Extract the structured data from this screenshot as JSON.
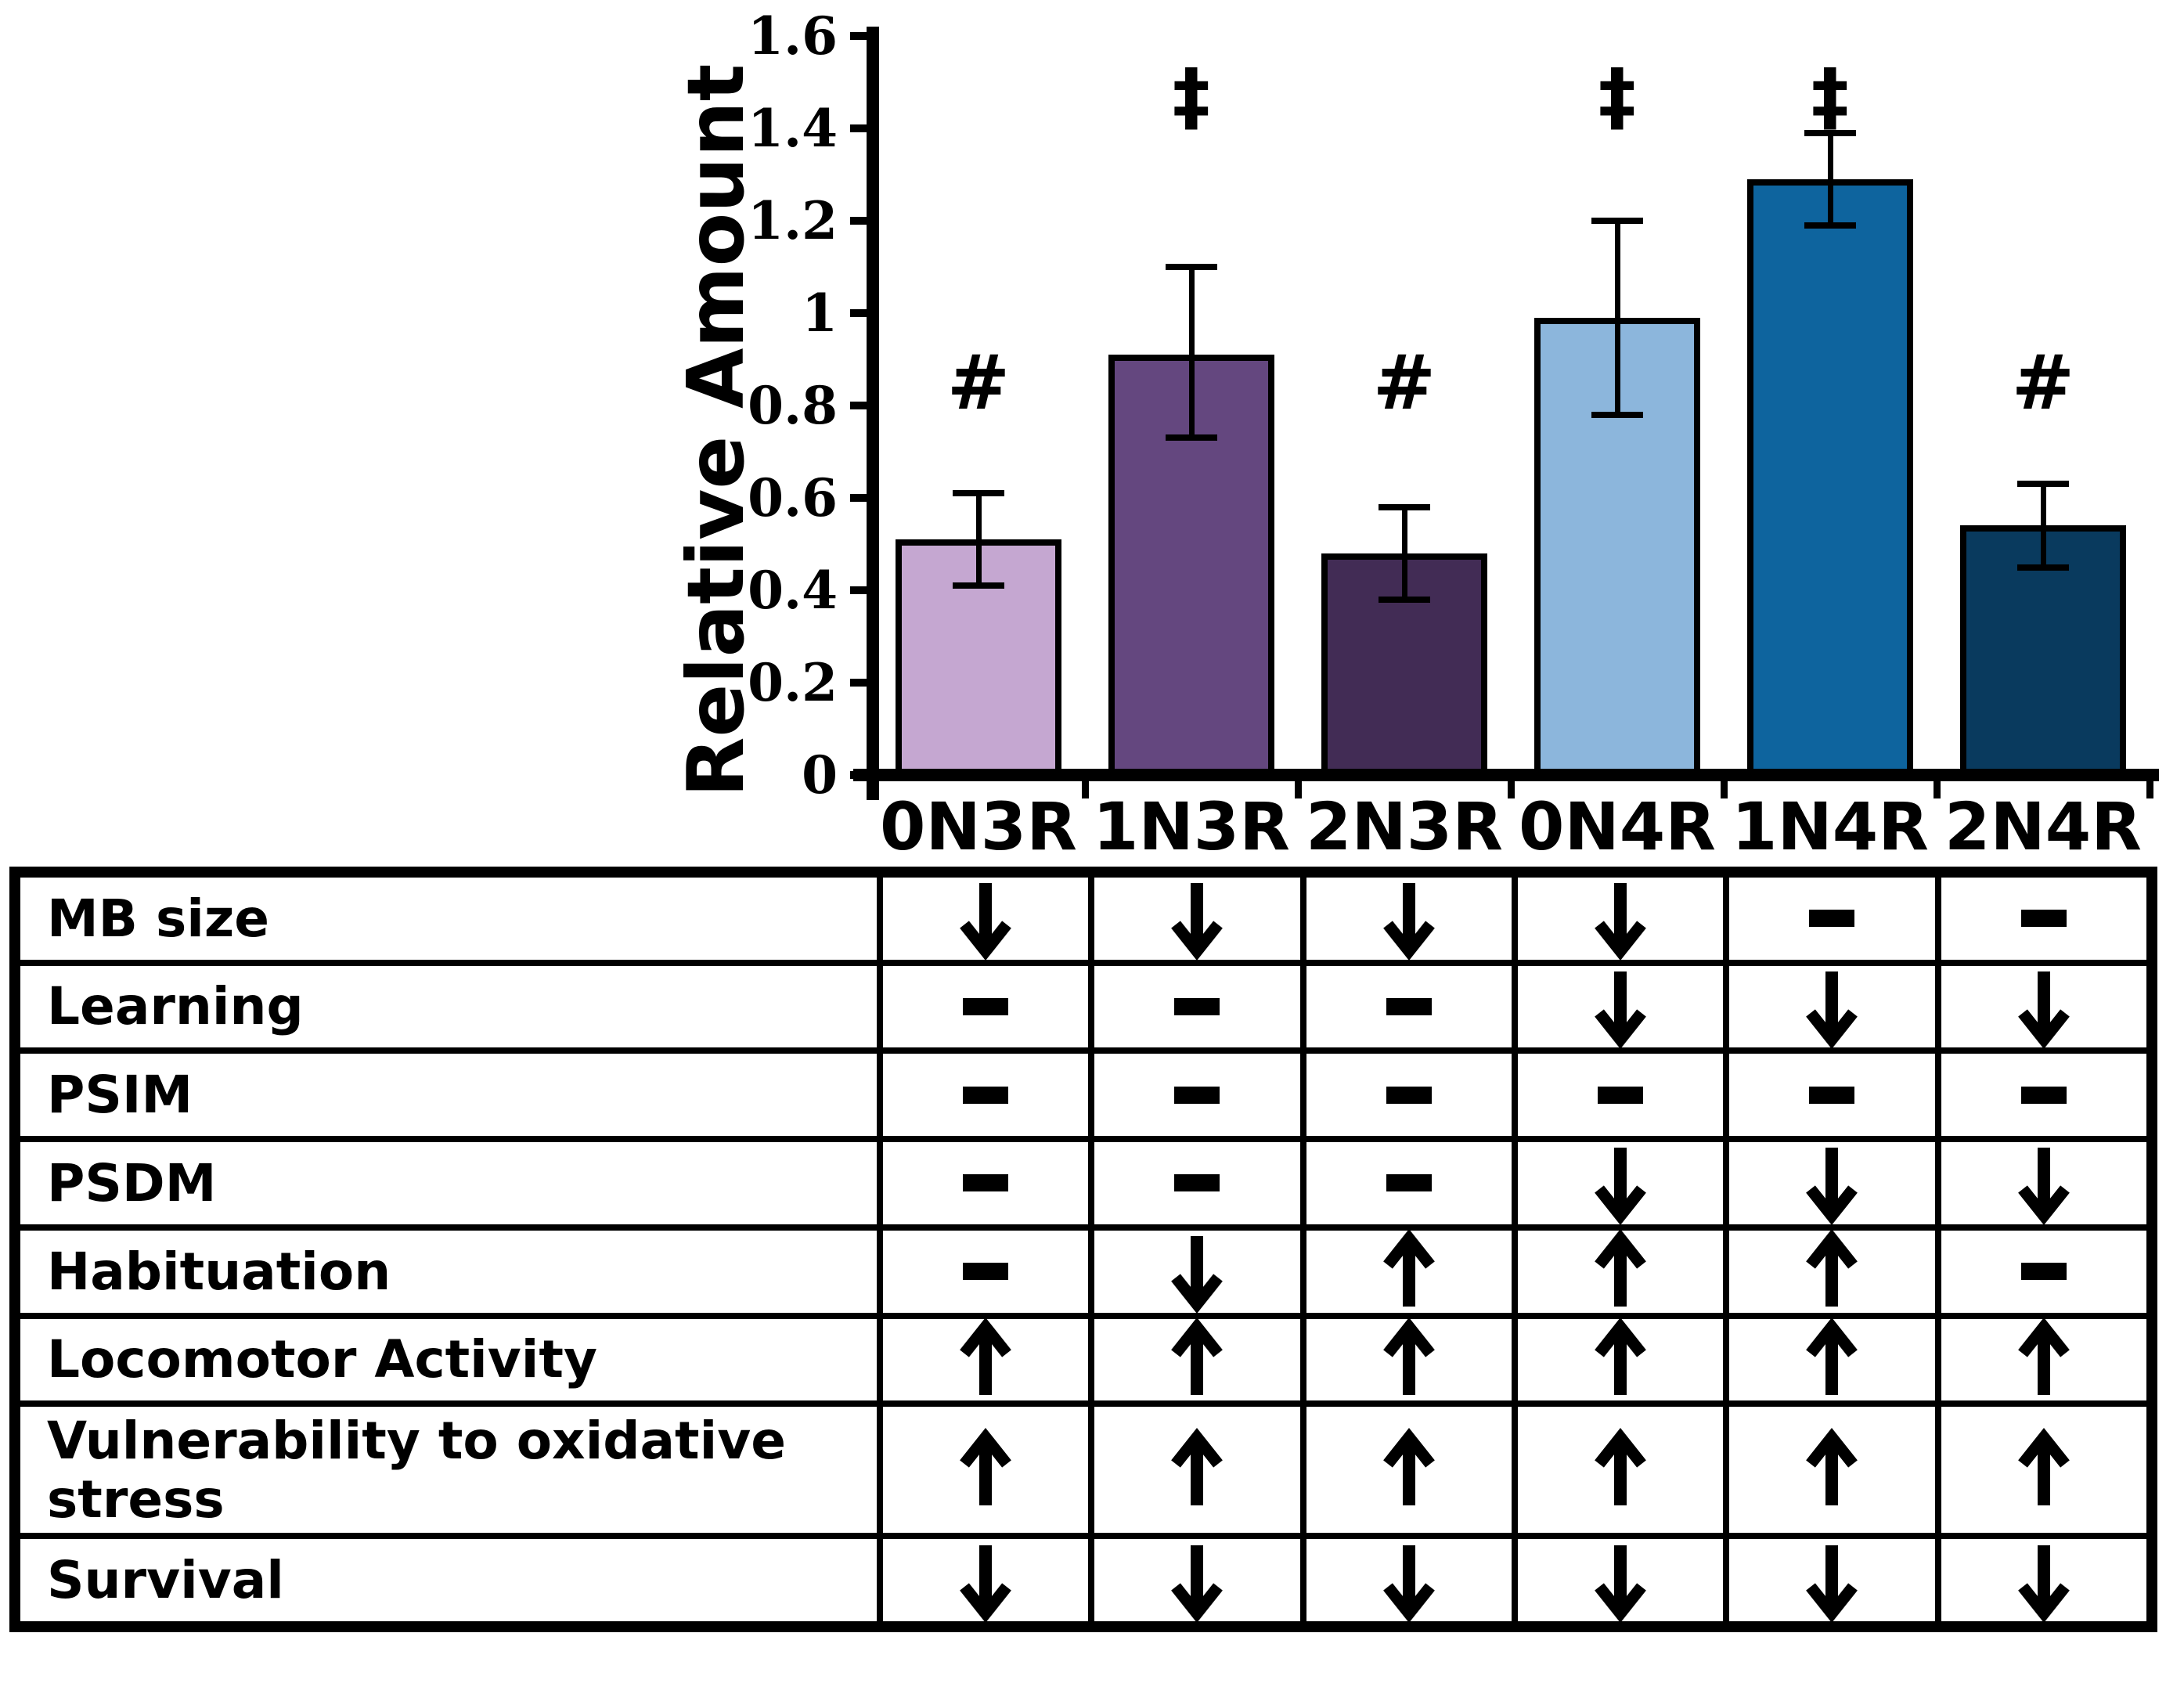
{
  "chart_data": {
    "type": "bar",
    "title": "",
    "ylabel": "Relative Amount",
    "xlabel": "",
    "categories": [
      "0N3R",
      "1N3R",
      "2N3R",
      "0N4R",
      "1N4R",
      "2N4R"
    ],
    "values": [
      0.51,
      0.91,
      0.48,
      0.99,
      1.29,
      0.54
    ],
    "error_low": [
      0.41,
      0.73,
      0.38,
      0.78,
      1.19,
      0.45
    ],
    "error_high": [
      0.61,
      1.1,
      0.58,
      1.2,
      1.39,
      0.63
    ],
    "annotations": [
      "#",
      "‡",
      "#",
      "‡",
      "‡",
      "#"
    ],
    "annotation_y": [
      0.85,
      1.47,
      0.85,
      1.47,
      1.47,
      0.85
    ],
    "bar_colors": [
      "#c5a7d1",
      "#64477f",
      "#422c55",
      "#8cb6dc",
      "#0e649e",
      "#093a5e"
    ],
    "bar_border_color": "#000000",
    "axis_color": "#000000",
    "ylim": [
      0,
      1.6
    ],
    "yticks": [
      "0",
      "0.2",
      "0.4",
      "0.6",
      "0.8",
      "1",
      "1.2",
      "1.4",
      "1.6"
    ],
    "grid": false,
    "legend": null
  },
  "table": {
    "rows": [
      {
        "label": "MB size",
        "cells": [
          "down",
          "down",
          "down",
          "down",
          "dash",
          "dash"
        ]
      },
      {
        "label": "Learning",
        "cells": [
          "dash",
          "dash",
          "dash",
          "down",
          "down",
          "down"
        ]
      },
      {
        "label": "PSIM",
        "cells": [
          "dash",
          "dash",
          "dash",
          "dash",
          "dash",
          "dash"
        ]
      },
      {
        "label": "PSDM",
        "cells": [
          "dash",
          "dash",
          "dash",
          "down",
          "down",
          "down"
        ]
      },
      {
        "label": "Habituation",
        "cells": [
          "dash",
          "down",
          "up",
          "up",
          "up",
          "dash"
        ]
      },
      {
        "label": "Locomotor Activity",
        "cells": [
          "up",
          "up",
          "up",
          "up",
          "up",
          "up"
        ]
      },
      {
        "label": "Vulnerability to oxidative stress",
        "cells": [
          "up",
          "up",
          "up",
          "up",
          "up",
          "up"
        ]
      },
      {
        "label": "Survival",
        "cells": [
          "down",
          "down",
          "down",
          "down",
          "down",
          "down"
        ]
      }
    ],
    "symbol_color": "#000000",
    "symbol_names": {
      "down": "down-arrow-icon",
      "up": "up-arrow-icon",
      "dash": "dash-icon"
    }
  }
}
